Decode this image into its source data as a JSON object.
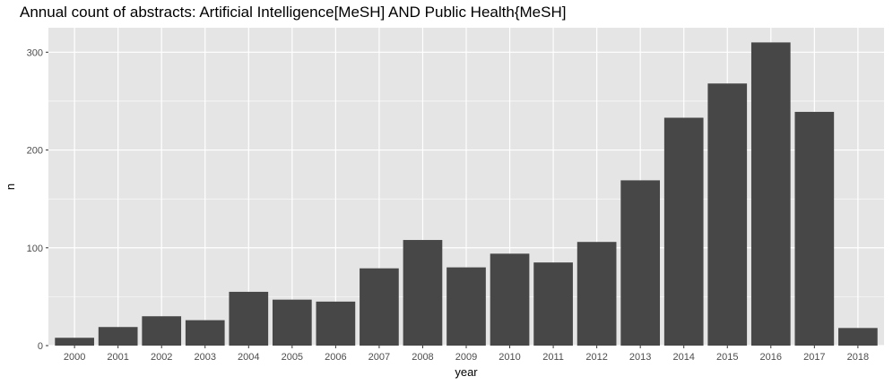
{
  "chart_data": {
    "type": "bar",
    "title": "Annual count of abstracts:  Artificial Intelligence[MeSH] AND Public Health{MeSH]",
    "xlabel": "year",
    "ylabel": "n",
    "categories": [
      "2000",
      "2001",
      "2002",
      "2003",
      "2004",
      "2005",
      "2006",
      "2007",
      "2008",
      "2009",
      "2010",
      "2011",
      "2012",
      "2013",
      "2014",
      "2015",
      "2016",
      "2017",
      "2018"
    ],
    "values": [
      8,
      19,
      30,
      26,
      55,
      47,
      45,
      79,
      108,
      80,
      94,
      85,
      106,
      169,
      233,
      268,
      310,
      239,
      18
    ],
    "ylim": [
      0,
      325
    ],
    "yticks": [
      0,
      100,
      200,
      300
    ],
    "grid": true,
    "bar_color": "#474747",
    "panel_color": "#e5e5e5",
    "grid_color": "#ffffff"
  }
}
